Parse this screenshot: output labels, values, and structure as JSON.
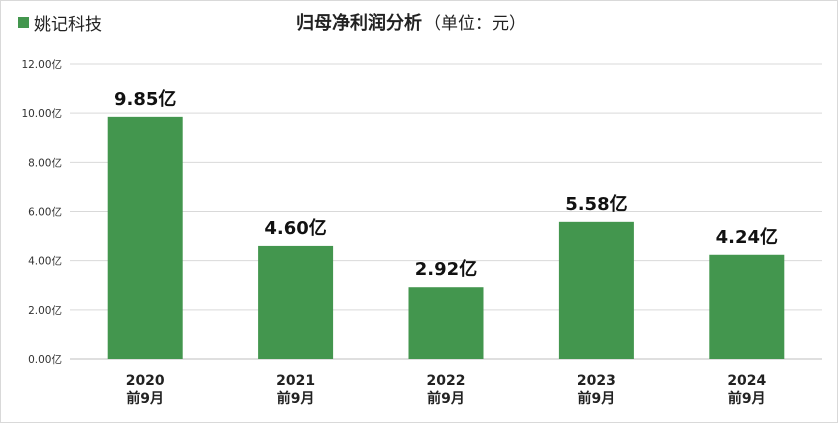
{
  "legend": {
    "label": "姚记科技",
    "color": "#43964e"
  },
  "title": {
    "main": "归母净利润分析",
    "sub": "（单位：元）"
  },
  "chart_data": {
    "type": "bar",
    "title": "归母净利润分析（单位：元）",
    "categories": [
      [
        "2020",
        "前9月"
      ],
      [
        "2021",
        "前9月"
      ],
      [
        "2022",
        "前9月"
      ],
      [
        "2023",
        "前9月"
      ],
      [
        "2024",
        "前9月"
      ]
    ],
    "series": [
      {
        "name": "姚记科技",
        "values": [
          9.85,
          4.6,
          2.92,
          5.58,
          4.24
        ],
        "color": "#43964e"
      }
    ],
    "data_labels": [
      "9.85亿",
      "4.60亿",
      "2.92亿",
      "5.58亿",
      "4.24亿"
    ],
    "y_ticks": [
      0,
      2,
      4,
      6,
      8,
      10,
      12
    ],
    "y_tick_labels": [
      "0.00亿",
      "2.00亿",
      "4.00亿",
      "6.00亿",
      "8.00亿",
      "10.00亿",
      "12.00亿"
    ],
    "ylim": [
      0,
      12
    ],
    "grid": true,
    "legend_position": "top-left",
    "xlabel": "",
    "ylabel": ""
  }
}
